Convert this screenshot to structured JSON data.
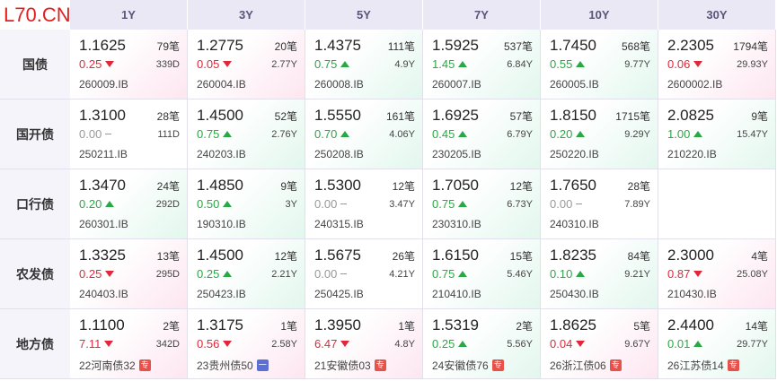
{
  "header": {
    "logo": "L70.CN"
  },
  "table": {
    "columns": [
      "1Y",
      "3Y",
      "5Y",
      "7Y",
      "10Y",
      "30Y"
    ],
    "rows": [
      {
        "label": "国债",
        "cells": [
          {
            "yield": "1.1625",
            "count": "79笔",
            "change": "0.25",
            "dir": "down",
            "term": "339D",
            "code": "260009.IB"
          },
          {
            "yield": "1.2775",
            "count": "20笔",
            "change": "0.05",
            "dir": "down",
            "term": "2.77Y",
            "code": "260004.IB"
          },
          {
            "yield": "1.4375",
            "count": "111笔",
            "change": "0.75",
            "dir": "up",
            "term": "4.9Y",
            "code": "260008.IB"
          },
          {
            "yield": "1.5925",
            "count": "537笔",
            "change": "1.45",
            "dir": "up",
            "term": "6.84Y",
            "code": "260007.IB"
          },
          {
            "yield": "1.7450",
            "count": "568笔",
            "change": "0.55",
            "dir": "up",
            "term": "9.77Y",
            "code": "260005.IB"
          },
          {
            "yield": "2.2305",
            "count": "1794笔",
            "change": "0.06",
            "dir": "down",
            "term": "29.93Y",
            "code": "2600002.IB"
          }
        ]
      },
      {
        "label": "国开债",
        "cells": [
          {
            "yield": "1.3100",
            "count": "28笔",
            "change": "0.00",
            "dir": "flat",
            "term": "111D",
            "code": "250211.IB"
          },
          {
            "yield": "1.4500",
            "count": "52笔",
            "change": "0.75",
            "dir": "up",
            "term": "2.76Y",
            "code": "240203.IB"
          },
          {
            "yield": "1.5550",
            "count": "161笔",
            "change": "0.70",
            "dir": "up",
            "term": "4.06Y",
            "code": "250208.IB"
          },
          {
            "yield": "1.6925",
            "count": "57笔",
            "change": "0.45",
            "dir": "up",
            "term": "6.79Y",
            "code": "230205.IB"
          },
          {
            "yield": "1.8150",
            "count": "1715笔",
            "change": "0.20",
            "dir": "up",
            "term": "9.29Y",
            "code": "250220.IB"
          },
          {
            "yield": "2.0825",
            "count": "9笔",
            "change": "1.00",
            "dir": "up",
            "term": "15.47Y",
            "code": "210220.IB"
          }
        ]
      },
      {
        "label": "口行债",
        "cells": [
          {
            "yield": "1.3470",
            "count": "24笔",
            "change": "0.20",
            "dir": "up",
            "term": "292D",
            "code": "260301.IB"
          },
          {
            "yield": "1.4850",
            "count": "9笔",
            "change": "0.50",
            "dir": "up",
            "term": "3Y",
            "code": "190310.IB"
          },
          {
            "yield": "1.5300",
            "count": "12笔",
            "change": "0.00",
            "dir": "flat",
            "term": "3.47Y",
            "code": "240315.IB"
          },
          {
            "yield": "1.7050",
            "count": "12笔",
            "change": "0.75",
            "dir": "up",
            "term": "6.73Y",
            "code": "230310.IB"
          },
          {
            "yield": "1.7650",
            "count": "28笔",
            "change": "0.00",
            "dir": "flat",
            "term": "7.89Y",
            "code": "240310.IB"
          },
          null
        ]
      },
      {
        "label": "农发债",
        "cells": [
          {
            "yield": "1.3325",
            "count": "13笔",
            "change": "0.25",
            "dir": "down",
            "term": "295D",
            "code": "240403.IB"
          },
          {
            "yield": "1.4500",
            "count": "12笔",
            "change": "0.25",
            "dir": "up",
            "term": "2.21Y",
            "code": "250423.IB"
          },
          {
            "yield": "1.5675",
            "count": "26笔",
            "change": "0.00",
            "dir": "flat",
            "term": "4.21Y",
            "code": "250425.IB"
          },
          {
            "yield": "1.6150",
            "count": "15笔",
            "change": "0.75",
            "dir": "up",
            "term": "5.46Y",
            "code": "210410.IB"
          },
          {
            "yield": "1.8235",
            "count": "84笔",
            "change": "0.10",
            "dir": "up",
            "term": "9.21Y",
            "code": "250430.IB"
          },
          {
            "yield": "2.3000",
            "count": "4笔",
            "change": "0.87",
            "dir": "down",
            "term": "25.08Y",
            "code": "210430.IB"
          }
        ]
      },
      {
        "label": "地方债",
        "cells": [
          {
            "yield": "1.1100",
            "count": "2笔",
            "change": "7.11",
            "dir": "down",
            "term": "342D",
            "code": "22河南债32",
            "tag": {
              "text": "专",
              "color": "#e8504a"
            }
          },
          {
            "yield": "1.3175",
            "count": "1笔",
            "change": "0.56",
            "dir": "down",
            "term": "2.58Y",
            "code": "23贵州债50",
            "tag": {
              "text": "一",
              "color": "#5b6fd6"
            }
          },
          {
            "yield": "1.3950",
            "count": "1笔",
            "change": "6.47",
            "dir": "down",
            "term": "4.8Y",
            "code": "21安徽债03",
            "tag": {
              "text": "专",
              "color": "#e8504a"
            }
          },
          {
            "yield": "1.5319",
            "count": "2笔",
            "change": "0.25",
            "dir": "up",
            "term": "5.56Y",
            "code": "24安徽债76",
            "tag": {
              "text": "专",
              "color": "#e8504a"
            }
          },
          {
            "yield": "1.8625",
            "count": "5笔",
            "change": "0.04",
            "dir": "down",
            "term": "9.67Y",
            "code": "26浙江债06",
            "tag": {
              "text": "专",
              "color": "#e8504a"
            }
          },
          {
            "yield": "2.4400",
            "count": "14笔",
            "change": "0.01",
            "dir": "up",
            "term": "29.77Y",
            "code": "26江苏债14",
            "tag": {
              "text": "专",
              "color": "#e8504a"
            }
          }
        ]
      }
    ]
  }
}
